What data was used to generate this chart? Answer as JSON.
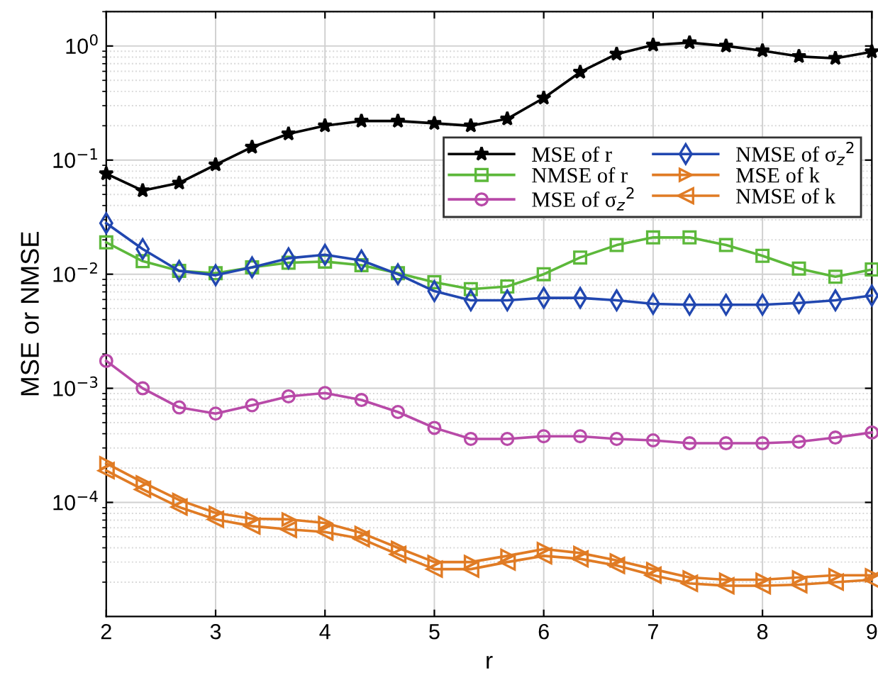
{
  "chart_data": {
    "type": "line",
    "xlabel": "r",
    "ylabel": "MSE or NMSE",
    "x": [
      2,
      2.3333,
      2.6667,
      3,
      3.3333,
      3.6667,
      4,
      4.3333,
      4.6667,
      5,
      5.3333,
      5.6667,
      6,
      6.3333,
      6.6667,
      7,
      7.3333,
      7.6667,
      8,
      8.3333,
      8.6667,
      9
    ],
    "series": [
      {
        "name": "MSE of r",
        "color": "#000000",
        "marker": "star",
        "values": [
          0.076,
          0.054,
          0.063,
          0.091,
          0.13,
          0.17,
          0.2,
          0.22,
          0.22,
          0.21,
          0.2,
          0.23,
          0.35,
          0.59,
          0.85,
          1.02,
          1.07,
          1.0,
          0.91,
          0.81,
          0.78,
          0.89
        ]
      },
      {
        "name": "NMSE of r",
        "color": "#5cb83a",
        "marker": "square",
        "values": [
          0.019,
          0.013,
          0.0107,
          0.0102,
          0.0115,
          0.0126,
          0.0129,
          0.012,
          0.0102,
          0.0085,
          0.0074,
          0.0078,
          0.01,
          0.014,
          0.018,
          0.021,
          0.021,
          0.018,
          0.0145,
          0.0112,
          0.0095,
          0.011
        ]
      },
      {
        "name": "MSE of σ$_{z}$$^{2}$",
        "color": "#b84aa8",
        "marker": "circle",
        "values": [
          0.00174,
          0.001,
          0.00068,
          0.0006,
          0.00071,
          0.00085,
          0.00091,
          0.00079,
          0.00062,
          0.00045,
          0.00036,
          0.00036,
          0.00038,
          0.00038,
          0.00036,
          0.00035,
          0.00033,
          0.00033,
          0.00033,
          0.00034,
          0.00037,
          0.00041
        ]
      },
      {
        "name": "NMSE of σ$_{z}$$^{2}$",
        "color": "#2147b0",
        "marker": "diamond",
        "values": [
          0.028,
          0.0166,
          0.0107,
          0.0098,
          0.0115,
          0.0138,
          0.0148,
          0.0132,
          0.01,
          0.0071,
          0.0059,
          0.0059,
          0.0062,
          0.0062,
          0.0059,
          0.0055,
          0.0054,
          0.0054,
          0.0054,
          0.0056,
          0.0059,
          0.0065
        ]
      },
      {
        "name": "MSE of k",
        "color": "#e07b24",
        "marker": "triangle-right",
        "values": [
          0.00022,
          0.00015,
          0.000105,
          8.1e-05,
          7.2e-05,
          7.1e-05,
          6.6e-05,
          5.4e-05,
          4e-05,
          3e-05,
          3e-05,
          3.4e-05,
          3.9e-05,
          3.6e-05,
          3.1e-05,
          2.6e-05,
          2.2e-05,
          2.1e-05,
          2.1e-05,
          2.2e-05,
          2.3e-05,
          2.3e-05
        ]
      },
      {
        "name": "NMSE of k",
        "color": "#e07b24",
        "marker": "triangle-left",
        "values": [
          0.00019,
          0.00013,
          9.1e-05,
          7.1e-05,
          6.2e-05,
          5.8e-05,
          5.5e-05,
          4.8e-05,
          3.5e-05,
          2.6e-05,
          2.6e-05,
          3e-05,
          3.4e-05,
          3.2e-05,
          2.8e-05,
          2.3e-05,
          1.95e-05,
          1.86e-05,
          1.86e-05,
          1.9e-05,
          2e-05,
          2.1e-05
        ]
      }
    ],
    "log": "y",
    "xlim": [
      2,
      9
    ],
    "xticks": [
      2,
      3,
      4,
      5,
      6,
      7,
      8,
      9
    ],
    "ylim": [
      1e-05,
      2
    ],
    "yticks": [
      {
        "value": 0.0001,
        "label": "10$^{−4}$"
      },
      {
        "value": 0.001,
        "label": "10$^{−3}$"
      },
      {
        "value": 0.01,
        "label": "10$^{−2}$"
      },
      {
        "value": 0.1,
        "label": "10$^{−1}$"
      },
      {
        "value": 1,
        "label": "10$^{0}$"
      }
    ],
    "grid": true,
    "legend": "top right",
    "line_style": "solid"
  }
}
